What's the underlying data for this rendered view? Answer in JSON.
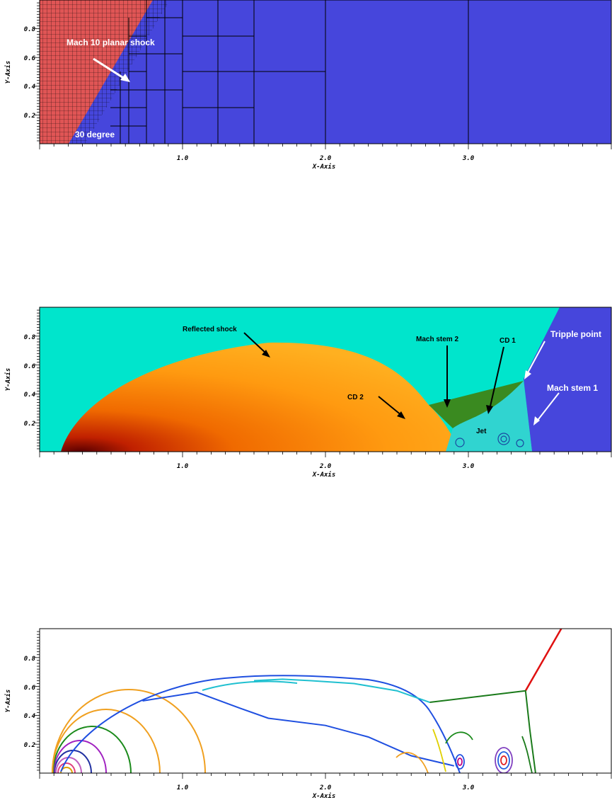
{
  "chart_data": [
    {
      "type": "heatmap",
      "panel": "amr-mesh",
      "xlabel": "X-Axis",
      "ylabel": "Y-Axis",
      "xlim": [
        0,
        4.0
      ],
      "ylim": [
        0,
        1.0
      ],
      "xticks": [
        "1.0",
        "2.0",
        "3.0"
      ],
      "yticks": [
        "0.2",
        "0.4",
        "0.6",
        "0.8"
      ],
      "colors": {
        "pre_shock": "#e05555",
        "post_shock": "#4646dc",
        "grid": "#000000"
      },
      "annotations": [
        {
          "text": "Mach 10 planar shock",
          "arrow": true
        },
        {
          "text": "30 degree",
          "arrow": false
        }
      ]
    },
    {
      "type": "heatmap",
      "panel": "density",
      "xlabel": "X-Axis",
      "ylabel": "Y-Axis",
      "xlim": [
        0,
        4.0
      ],
      "ylim": [
        0,
        1.0
      ],
      "xticks": [
        "1.0",
        "2.0",
        "3.0"
      ],
      "yticks": [
        "0.2",
        "0.4",
        "0.6",
        "0.8"
      ],
      "colors": {
        "ambient": "#00e5cc",
        "post_shock": "#4646dc",
        "bubble": "#ff9a10",
        "stem": "#3a8a20"
      },
      "annotations": [
        {
          "text": "Reflected shock",
          "arrow": true
        },
        {
          "text": "Mach stem 2",
          "arrow": true
        },
        {
          "text": "CD 1",
          "arrow": true
        },
        {
          "text": "Tripple point",
          "arrow": true
        },
        {
          "text": "Mach stem 1",
          "arrow": true
        },
        {
          "text": "CD 2",
          "arrow": true
        },
        {
          "text": "Jet",
          "arrow": false
        }
      ]
    },
    {
      "type": "line",
      "panel": "contour",
      "xlabel": "X-Axis",
      "ylabel": "Y-Axis",
      "xlim": [
        0,
        4.0
      ],
      "ylim": [
        0,
        1.0
      ],
      "xticks": [
        "1.0",
        "2.0",
        "3.0"
      ],
      "yticks": [
        "0.2",
        "0.4",
        "0.6",
        "0.8"
      ],
      "series": [
        {
          "color": "#e01010",
          "points": [
            [
              3.4,
              0.57
            ],
            [
              3.65,
              1.0
            ]
          ]
        },
        {
          "color": "#1a7a1a",
          "points": [
            [
              2.73,
              0.49
            ],
            [
              3.4,
              0.57
            ],
            [
              3.43,
              0.3
            ],
            [
              3.47,
              0.0
            ]
          ]
        },
        {
          "color": "#20c0d0",
          "points": [
            [
              1.5,
              0.64
            ],
            [
              1.7,
              0.65
            ],
            [
              1.9,
              0.64
            ],
            [
              2.2,
              0.62
            ],
            [
              2.5,
              0.57
            ],
            [
              2.73,
              0.49
            ]
          ]
        },
        {
          "color": "#1f4fe0",
          "points": [
            [
              0.72,
              0.5
            ],
            [
              1.1,
              0.56
            ],
            [
              1.4,
              0.45
            ],
            [
              1.6,
              0.38
            ],
            [
              2.0,
              0.33
            ],
            [
              2.3,
              0.25
            ],
            [
              2.6,
              0.12
            ],
            [
              2.9,
              0.05
            ]
          ]
        }
      ]
    }
  ],
  "labels": {
    "x_axis": "X-Axis",
    "y_axis": "Y-Axis",
    "tick_x": [
      "1.0",
      "2.0",
      "3.0"
    ],
    "tick_y": [
      "0.2",
      "0.4",
      "0.6",
      "0.8"
    ],
    "mesh_shock": "Mach 10 planar shock",
    "mesh_angle": "30 degree",
    "reflected_shock": "Reflected shock",
    "mach_stem_2": "Mach stem 2",
    "cd1": "CD 1",
    "tripple_point": "Tripple point",
    "mach_stem_1": "Mach stem 1",
    "cd2": "CD 2",
    "jet": "Jet"
  }
}
